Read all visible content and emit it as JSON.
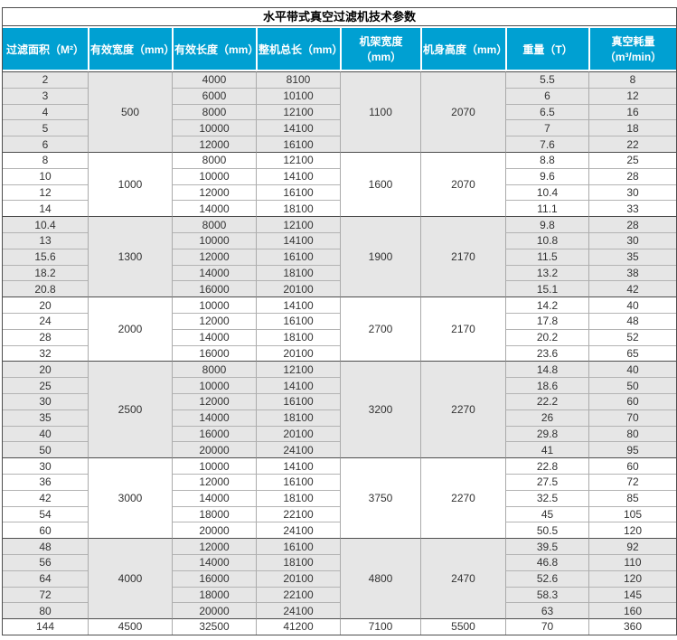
{
  "title": "水平带式真空过滤机技术参数",
  "columns": [
    "过滤面积（M²）",
    "有效宽度（mm）",
    "有效长度（mm）",
    "整机总长（mm）",
    "机架宽度（mm）",
    "机身高度（mm）",
    "重量（T）",
    "真空耗量（m³/min）"
  ],
  "colors": {
    "header_bg": "#00a0d2",
    "header_text": "#ffffff",
    "shaded_row": "#e6e6e6",
    "grid": "#aaaaaa",
    "grid_light": "#b3b3b3",
    "group_border": "#4d4d4d"
  },
  "groups": [
    {
      "effective_width": "500",
      "frame_width": "1100",
      "body_height": "2070",
      "shaded": true,
      "rows": [
        {
          "area": "2",
          "length": "4000",
          "total_length": "8100",
          "weight": "5.5",
          "vacuum": "8"
        },
        {
          "area": "3",
          "length": "6000",
          "total_length": "10100",
          "weight": "6",
          "vacuum": "12"
        },
        {
          "area": "4",
          "length": "8000",
          "total_length": "12100",
          "weight": "6.5",
          "vacuum": "16"
        },
        {
          "area": "5",
          "length": "10000",
          "total_length": "14100",
          "weight": "7",
          "vacuum": "18"
        },
        {
          "area": "6",
          "length": "12000",
          "total_length": "16100",
          "weight": "7.6",
          "vacuum": "22"
        }
      ]
    },
    {
      "effective_width": "1000",
      "frame_width": "1600",
      "body_height": "2070",
      "shaded": false,
      "rows": [
        {
          "area": "8",
          "length": "8000",
          "total_length": "12100",
          "weight": "8.8",
          "vacuum": "25"
        },
        {
          "area": "10",
          "length": "10000",
          "total_length": "14100",
          "weight": "9.6",
          "vacuum": "28"
        },
        {
          "area": "12",
          "length": "12000",
          "total_length": "16100",
          "weight": "10.4",
          "vacuum": "30"
        },
        {
          "area": "14",
          "length": "14000",
          "total_length": "18100",
          "weight": "11.1",
          "vacuum": "33"
        }
      ]
    },
    {
      "effective_width": "1300",
      "frame_width": "1900",
      "body_height": "2170",
      "shaded": true,
      "rows": [
        {
          "area": "10.4",
          "length": "8000",
          "total_length": "12100",
          "weight": "9.8",
          "vacuum": "28"
        },
        {
          "area": "13",
          "length": "10000",
          "total_length": "14100",
          "weight": "10.8",
          "vacuum": "30"
        },
        {
          "area": "15.6",
          "length": "12000",
          "total_length": "16100",
          "weight": "11.5",
          "vacuum": "35"
        },
        {
          "area": "18.2",
          "length": "14000",
          "total_length": "18100",
          "weight": "13.2",
          "vacuum": "38"
        },
        {
          "area": "20.8",
          "length": "16000",
          "total_length": "20100",
          "weight": "15.1",
          "vacuum": "42"
        }
      ]
    },
    {
      "effective_width": "2000",
      "frame_width": "2700",
      "body_height": "2170",
      "shaded": false,
      "rows": [
        {
          "area": "20",
          "length": "10000",
          "total_length": "14100",
          "weight": "14.2",
          "vacuum": "40"
        },
        {
          "area": "24",
          "length": "12000",
          "total_length": "16100",
          "weight": "17.8",
          "vacuum": "48"
        },
        {
          "area": "28",
          "length": "14000",
          "total_length": "18100",
          "weight": "20.2",
          "vacuum": "52"
        },
        {
          "area": "32",
          "length": "16000",
          "total_length": "20100",
          "weight": "23.6",
          "vacuum": "65"
        }
      ]
    },
    {
      "effective_width": "2500",
      "frame_width": "3200",
      "body_height": "2270",
      "shaded": true,
      "rows": [
        {
          "area": "20",
          "length": "8000",
          "total_length": "12100",
          "weight": "14.8",
          "vacuum": "40"
        },
        {
          "area": "25",
          "length": "10000",
          "total_length": "14100",
          "weight": "18.6",
          "vacuum": "50"
        },
        {
          "area": "30",
          "length": "12000",
          "total_length": "16100",
          "weight": "22.2",
          "vacuum": "60"
        },
        {
          "area": "35",
          "length": "14000",
          "total_length": "18100",
          "weight": "26",
          "vacuum": "70"
        },
        {
          "area": "40",
          "length": "16000",
          "total_length": "20100",
          "weight": "29.8",
          "vacuum": "80"
        },
        {
          "area": "50",
          "length": "20000",
          "total_length": "24100",
          "weight": "41",
          "vacuum": "95"
        }
      ]
    },
    {
      "effective_width": "3000",
      "frame_width": "3750",
      "body_height": "2270",
      "shaded": false,
      "rows": [
        {
          "area": "30",
          "length": "10000",
          "total_length": "14100",
          "weight": "22.8",
          "vacuum": "60"
        },
        {
          "area": "36",
          "length": "12000",
          "total_length": "16100",
          "weight": "27.5",
          "vacuum": "72"
        },
        {
          "area": "42",
          "length": "14000",
          "total_length": "18100",
          "weight": "32.5",
          "vacuum": "85"
        },
        {
          "area": "54",
          "length": "18000",
          "total_length": "22100",
          "weight": "45",
          "vacuum": "105"
        },
        {
          "area": "60",
          "length": "20000",
          "total_length": "24100",
          "weight": "50.5",
          "vacuum": "120"
        }
      ]
    },
    {
      "effective_width": "4000",
      "frame_width": "4800",
      "body_height": "2470",
      "shaded": true,
      "rows": [
        {
          "area": "48",
          "length": "12000",
          "total_length": "16100",
          "weight": "39.5",
          "vacuum": "92"
        },
        {
          "area": "56",
          "length": "14000",
          "total_length": "18100",
          "weight": "46.8",
          "vacuum": "110"
        },
        {
          "area": "64",
          "length": "16000",
          "total_length": "20100",
          "weight": "52.6",
          "vacuum": "120"
        },
        {
          "area": "72",
          "length": "18000",
          "total_length": "22100",
          "weight": "58.3",
          "vacuum": "145"
        },
        {
          "area": "80",
          "length": "20000",
          "total_length": "24100",
          "weight": "63",
          "vacuum": "160"
        }
      ]
    },
    {
      "effective_width": "4500",
      "frame_width": "7100",
      "body_height": "5500",
      "shaded": false,
      "rows": [
        {
          "area": "144",
          "length": "32500",
          "total_length": "41200",
          "weight": "70",
          "vacuum": "360"
        }
      ]
    }
  ]
}
